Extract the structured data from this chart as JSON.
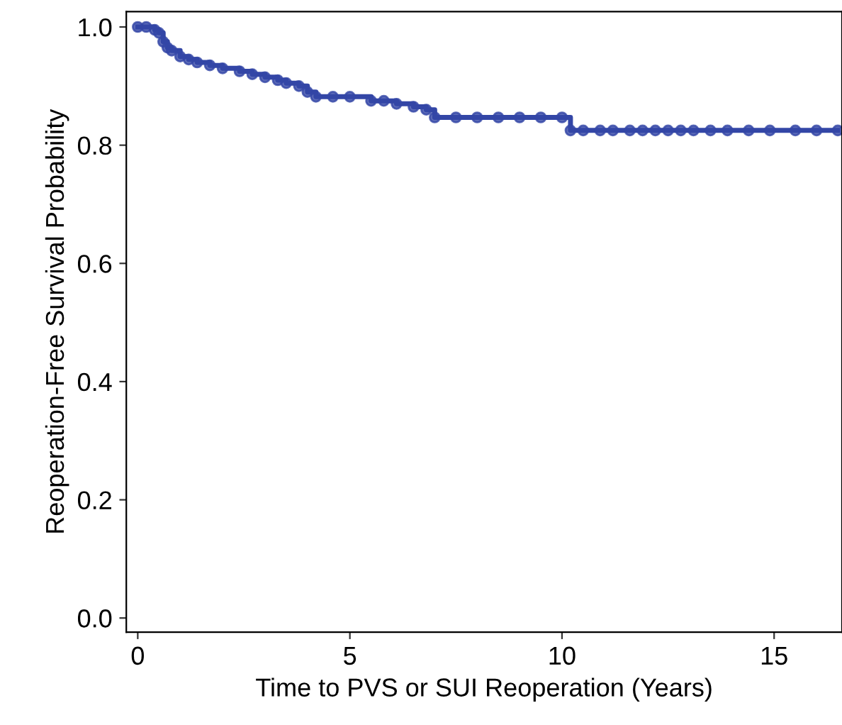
{
  "chart_data": {
    "type": "step",
    "xlabel": "Time to PVS or SUI Reoperation (Years)",
    "ylabel": "Reoperation-Free Survival Probability",
    "xlim": [
      -0.27,
      16.6
    ],
    "ylim": [
      -0.024,
      1.026
    ],
    "xticks": [
      0,
      5,
      10,
      15
    ],
    "yticks": [
      {
        "value": 0,
        "label": "0.0"
      },
      0.2,
      0.4,
      0.6,
      0.8,
      {
        "value": 1,
        "label": "1.0"
      }
    ],
    "marker": "circle",
    "line_style": "solid",
    "grid": false,
    "legend": false,
    "series": [
      {
        "color": "#3346a6",
        "x": [
          0,
          0.2,
          0.4,
          0.5,
          0.6,
          0.7,
          0.8,
          1.0,
          1.2,
          1.4,
          1.7,
          2.0,
          2.4,
          2.7,
          3.0,
          3.3,
          3.5,
          3.8,
          4.0,
          4.2,
          4.6,
          5.0,
          5.5,
          5.8,
          6.1,
          6.5,
          6.8,
          7.0,
          7.5,
          8.0,
          8.5,
          9.0,
          9.5,
          10.0,
          10.2,
          10.5,
          10.9,
          11.2,
          11.6,
          11.9,
          12.2,
          12.5,
          12.8,
          13.1,
          13.5,
          13.9,
          14.4,
          14.9,
          15.5,
          16.0,
          16.5
        ],
        "values": [
          1.0,
          1.0,
          0.995,
          0.99,
          0.975,
          0.965,
          0.96,
          0.95,
          0.945,
          0.94,
          0.935,
          0.93,
          0.925,
          0.92,
          0.915,
          0.91,
          0.905,
          0.9,
          0.89,
          0.882,
          0.882,
          0.882,
          0.875,
          0.875,
          0.87,
          0.865,
          0.86,
          0.847,
          0.847,
          0.847,
          0.847,
          0.847,
          0.847,
          0.847,
          0.825,
          0.825,
          0.825,
          0.825,
          0.825,
          0.825,
          0.825,
          0.825,
          0.825,
          0.825,
          0.825,
          0.825,
          0.825,
          0.825,
          0.825,
          0.825,
          0.825
        ]
      }
    ]
  }
}
